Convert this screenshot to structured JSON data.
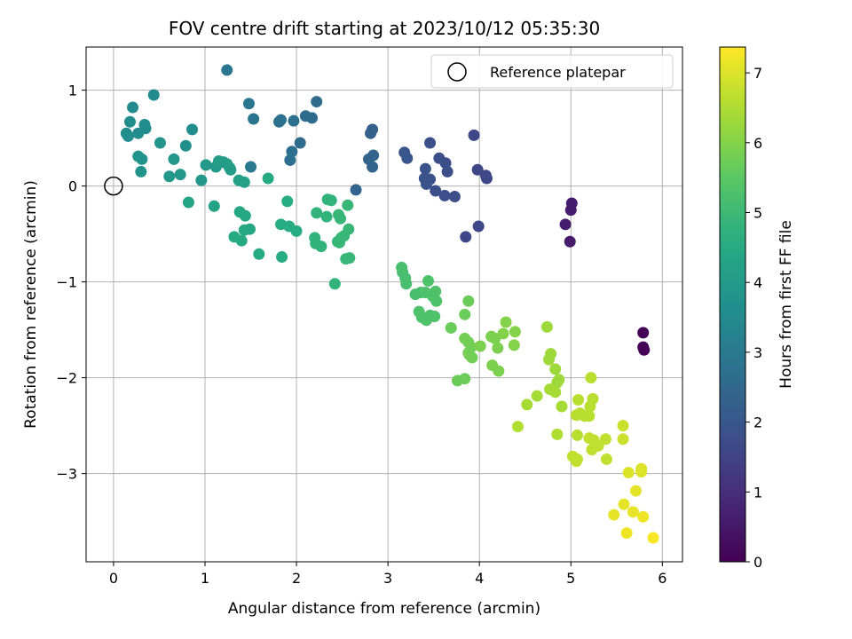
{
  "chart_data": {
    "type": "scatter",
    "title": "FOV centre drift starting at 2023/10/12 05:35:30",
    "xlabel": "Angular distance from reference (arcmin)",
    "ylabel": "Rotation from reference (arcmin)",
    "xlim": [
      -0.3,
      6.22
    ],
    "ylim": [
      -3.92,
      1.45
    ],
    "xticks": [
      0,
      1,
      2,
      3,
      4,
      5,
      6
    ],
    "yticks": [
      -3,
      -2,
      -1,
      0,
      1
    ],
    "ytick_labels": [
      "−3",
      "−2",
      "−1",
      "0",
      "1"
    ],
    "grid": true,
    "legend": {
      "placement": "upper-right",
      "entries": [
        "Reference platepar"
      ]
    },
    "reference_point": {
      "x": 0,
      "y": 0
    },
    "colorbar": {
      "label": "Hours from first FF file",
      "range": [
        0,
        7.37
      ],
      "ticks": [
        0,
        1,
        2,
        3,
        4,
        5,
        6,
        7
      ],
      "colormap": "viridis"
    },
    "points": [
      [
        5.79,
        -1.53,
        0.05
      ],
      [
        5.79,
        -1.68,
        0.05
      ],
      [
        5.8,
        -1.71,
        0.05
      ],
      [
        4.99,
        -0.58,
        0.55
      ],
      [
        4.94,
        -0.4,
        0.6
      ],
      [
        5.0,
        -0.25,
        0.6
      ],
      [
        5.01,
        -0.18,
        0.6
      ],
      [
        3.85,
        -0.53,
        1.6
      ],
      [
        3.99,
        -0.42,
        1.6
      ],
      [
        3.94,
        0.53,
        1.6
      ],
      [
        3.98,
        0.17,
        1.6
      ],
      [
        4.07,
        0.11,
        1.6
      ],
      [
        4.08,
        0.08,
        1.6
      ],
      [
        3.46,
        0.45,
        1.8
      ],
      [
        3.56,
        0.29,
        1.8
      ],
      [
        3.63,
        0.24,
        1.8
      ],
      [
        3.65,
        0.15,
        1.8
      ],
      [
        3.73,
        -0.11,
        1.8
      ],
      [
        3.62,
        -0.1,
        1.8
      ],
      [
        3.52,
        -0.05,
        1.8
      ],
      [
        3.41,
        0.18,
        1.9
      ],
      [
        3.4,
        0.08,
        1.9
      ],
      [
        3.42,
        0.02,
        1.9
      ],
      [
        3.46,
        0.07,
        1.9
      ],
      [
        3.18,
        0.35,
        2.0
      ],
      [
        3.21,
        0.29,
        2.0
      ],
      [
        2.83,
        0.59,
        2.3
      ],
      [
        2.81,
        0.55,
        2.3
      ],
      [
        2.79,
        0.28,
        2.4
      ],
      [
        2.84,
        0.32,
        2.4
      ],
      [
        2.83,
        0.2,
        2.4
      ],
      [
        2.65,
        -0.04,
        2.4
      ],
      [
        2.22,
        0.88,
        2.6
      ],
      [
        2.17,
        0.71,
        2.6
      ],
      [
        2.1,
        0.73,
        2.6
      ],
      [
        2.04,
        0.45,
        2.6
      ],
      [
        1.97,
        0.68,
        2.7
      ],
      [
        1.95,
        0.36,
        2.7
      ],
      [
        1.93,
        0.27,
        2.7
      ],
      [
        1.81,
        0.67,
        2.8
      ],
      [
        1.83,
        0.69,
        2.8
      ],
      [
        1.24,
        1.21,
        2.9
      ],
      [
        1.48,
        0.86,
        2.9
      ],
      [
        1.53,
        0.7,
        2.9
      ],
      [
        1.5,
        0.2,
        3.0
      ],
      [
        0.44,
        0.95,
        3.5
      ],
      [
        0.21,
        0.82,
        3.5
      ],
      [
        0.18,
        0.67,
        3.6
      ],
      [
        0.14,
        0.55,
        3.6
      ],
      [
        0.16,
        0.52,
        3.6
      ],
      [
        0.27,
        0.55,
        3.6
      ],
      [
        0.34,
        0.64,
        3.6
      ],
      [
        0.35,
        0.6,
        3.6
      ],
      [
        0.86,
        0.59,
        3.6
      ],
      [
        0.79,
        0.42,
        3.7
      ],
      [
        0.51,
        0.45,
        3.8
      ],
      [
        0.27,
        0.31,
        3.8
      ],
      [
        0.31,
        0.28,
        3.8
      ],
      [
        0.3,
        0.15,
        3.8
      ],
      [
        0.66,
        0.28,
        3.9
      ],
      [
        0.61,
        0.1,
        3.9
      ],
      [
        0.73,
        0.12,
        3.9
      ],
      [
        0.96,
        0.06,
        3.9
      ],
      [
        1.01,
        0.22,
        4.0
      ],
      [
        1.12,
        0.2,
        4.0
      ],
      [
        1.15,
        0.26,
        4.1
      ],
      [
        1.2,
        0.25,
        4.1
      ],
      [
        1.24,
        0.23,
        4.1
      ],
      [
        1.27,
        0.19,
        4.1
      ],
      [
        1.28,
        0.17,
        4.1
      ],
      [
        1.37,
        0.06,
        4.2
      ],
      [
        1.43,
        0.04,
        4.2
      ],
      [
        0.82,
        -0.17,
        4.3
      ],
      [
        1.1,
        -0.21,
        4.3
      ],
      [
        1.38,
        -0.27,
        4.4
      ],
      [
        1.44,
        -0.31,
        4.4
      ],
      [
        1.49,
        -0.45,
        4.4
      ],
      [
        1.43,
        -0.46,
        4.4
      ],
      [
        1.32,
        -0.53,
        4.5
      ],
      [
        1.4,
        -0.57,
        4.5
      ],
      [
        1.59,
        -0.71,
        4.5
      ],
      [
        1.69,
        0.08,
        4.5
      ],
      [
        1.83,
        -0.4,
        4.6
      ],
      [
        1.9,
        -0.16,
        4.6
      ],
      [
        1.92,
        -0.42,
        4.6
      ],
      [
        2.0,
        -0.47,
        4.6
      ],
      [
        1.84,
        -0.74,
        4.6
      ],
      [
        2.22,
        -0.28,
        4.8
      ],
      [
        2.2,
        -0.54,
        4.8
      ],
      [
        2.21,
        -0.6,
        4.8
      ],
      [
        2.27,
        -0.63,
        4.8
      ],
      [
        2.33,
        -0.32,
        4.8
      ],
      [
        2.34,
        -0.14,
        4.8
      ],
      [
        2.38,
        -0.15,
        4.8
      ],
      [
        2.42,
        -1.02,
        4.8
      ],
      [
        2.46,
        -0.3,
        4.9
      ],
      [
        2.48,
        -0.34,
        4.9
      ],
      [
        2.56,
        -0.2,
        4.9
      ],
      [
        2.57,
        -0.45,
        4.9
      ],
      [
        2.45,
        -0.58,
        4.9
      ],
      [
        2.49,
        -0.54,
        4.9
      ],
      [
        2.47,
        -0.59,
        4.9
      ],
      [
        2.52,
        -0.52,
        4.9
      ],
      [
        2.54,
        -0.76,
        4.9
      ],
      [
        2.58,
        -0.75,
        4.9
      ],
      [
        3.15,
        -0.85,
        5.2
      ],
      [
        3.16,
        -0.9,
        5.2
      ],
      [
        3.19,
        -0.96,
        5.2
      ],
      [
        3.2,
        -1.02,
        5.2
      ],
      [
        3.3,
        -1.13,
        5.2
      ],
      [
        3.36,
        -1.11,
        5.2
      ],
      [
        3.41,
        -1.11,
        5.3
      ],
      [
        3.44,
        -0.99,
        5.3
      ],
      [
        3.49,
        -1.15,
        5.3
      ],
      [
        3.52,
        -1.1,
        5.3
      ],
      [
        3.53,
        -1.2,
        5.3
      ],
      [
        3.34,
        -1.31,
        5.3
      ],
      [
        3.37,
        -1.37,
        5.3
      ],
      [
        3.42,
        -1.4,
        5.3
      ],
      [
        3.46,
        -1.35,
        5.3
      ],
      [
        3.51,
        -1.36,
        5.3
      ],
      [
        3.69,
        -1.48,
        5.7
      ],
      [
        3.84,
        -1.34,
        5.7
      ],
      [
        3.88,
        -1.2,
        5.7
      ],
      [
        3.76,
        -2.03,
        5.7
      ],
      [
        3.84,
        -2.01,
        5.7
      ],
      [
        3.84,
        -1.59,
        5.8
      ],
      [
        3.88,
        -1.63,
        5.8
      ],
      [
        3.91,
        -1.68,
        5.8
      ],
      [
        3.88,
        -1.74,
        5.8
      ],
      [
        3.92,
        -1.79,
        5.8
      ],
      [
        3.89,
        -1.76,
        5.8
      ],
      [
        4.01,
        -1.67,
        5.9
      ],
      [
        4.13,
        -1.57,
        5.9
      ],
      [
        4.17,
        -1.59,
        5.9
      ],
      [
        4.2,
        -1.69,
        5.9
      ],
      [
        4.14,
        -1.87,
        5.9
      ],
      [
        4.21,
        -1.93,
        5.9
      ],
      [
        4.26,
        -1.54,
        6.0
      ],
      [
        4.29,
        -1.42,
        6.0
      ],
      [
        4.39,
        -1.52,
        6.0
      ],
      [
        4.38,
        -1.66,
        6.0
      ],
      [
        4.74,
        -1.47,
        6.3
      ],
      [
        4.78,
        -1.75,
        6.3
      ],
      [
        4.76,
        -1.81,
        6.3
      ],
      [
        4.83,
        -1.91,
        6.3
      ],
      [
        4.85,
        -2.05,
        6.3
      ],
      [
        4.87,
        -2.02,
        6.3
      ],
      [
        4.77,
        -2.12,
        6.4
      ],
      [
        4.83,
        -2.15,
        6.4
      ],
      [
        4.63,
        -2.19,
        6.4
      ],
      [
        4.52,
        -2.28,
        6.4
      ],
      [
        4.9,
        -2.3,
        6.4
      ],
      [
        4.42,
        -2.51,
        6.5
      ],
      [
        4.85,
        -2.59,
        6.5
      ],
      [
        5.22,
        -2.0,
        6.6
      ],
      [
        5.08,
        -2.23,
        6.6
      ],
      [
        5.21,
        -2.3,
        6.6
      ],
      [
        5.24,
        -2.22,
        6.6
      ],
      [
        5.06,
        -2.39,
        6.6
      ],
      [
        5.1,
        -2.37,
        6.6
      ],
      [
        5.15,
        -2.4,
        6.6
      ],
      [
        5.2,
        -2.4,
        6.6
      ],
      [
        5.07,
        -2.6,
        6.6
      ],
      [
        5.2,
        -2.63,
        6.7
      ],
      [
        5.25,
        -2.65,
        6.7
      ],
      [
        5.23,
        -2.75,
        6.7
      ],
      [
        5.3,
        -2.71,
        6.7
      ],
      [
        5.38,
        -2.64,
        6.7
      ],
      [
        5.02,
        -2.82,
        6.7
      ],
      [
        5.06,
        -2.87,
        6.7
      ],
      [
        5.07,
        -2.85,
        6.7
      ],
      [
        5.39,
        -2.85,
        6.7
      ],
      [
        5.57,
        -2.5,
        6.8
      ],
      [
        5.57,
        -2.64,
        6.8
      ],
      [
        5.63,
        -2.99,
        7.0
      ],
      [
        5.77,
        -2.95,
        7.0
      ],
      [
        5.77,
        -2.98,
        7.0
      ],
      [
        5.71,
        -3.18,
        7.1
      ],
      [
        5.58,
        -3.32,
        7.1
      ],
      [
        5.68,
        -3.4,
        7.1
      ],
      [
        5.47,
        -3.43,
        7.1
      ],
      [
        5.79,
        -3.45,
        7.2
      ],
      [
        5.61,
        -3.62,
        7.2
      ],
      [
        5.9,
        -3.67,
        7.3
      ]
    ]
  }
}
